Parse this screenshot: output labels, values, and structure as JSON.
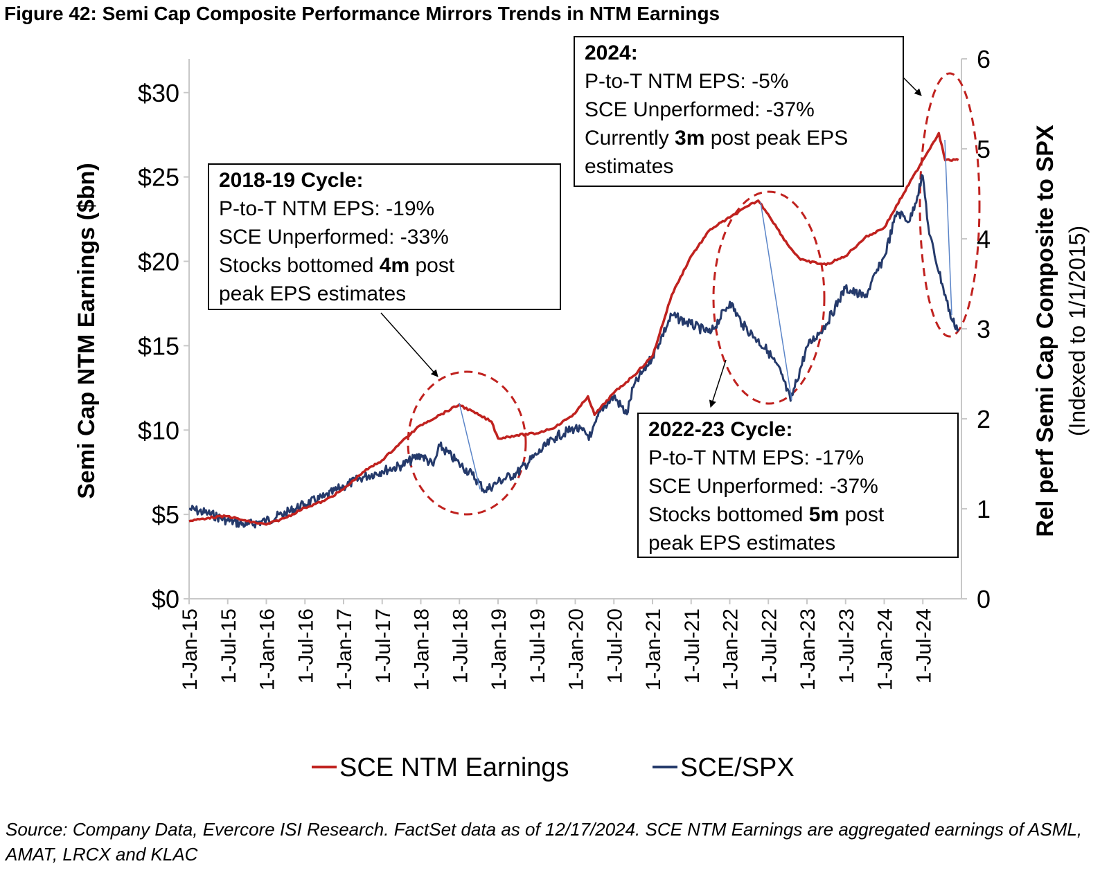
{
  "figure_title": "Figure 42: Semi Cap Composite Performance Mirrors Trends in NTM Earnings",
  "source_note": "Source: Company Data, Evercore ISI Research. FactSet data as of 12/17/2024. SCE NTM Earnings are aggregated earnings of ASML, AMAT, LRCX and KLAC",
  "colors": {
    "earnings": "#c0221f",
    "relperf": "#253a6b",
    "ellipse": "#c0221f",
    "connector": "#5b85c8"
  },
  "callouts": {
    "c2018": {
      "title": "2018-19 Cycle:",
      "line1": "P-to-T NTM EPS: -19%",
      "line2": "SCE Unperformed: -33%",
      "line3_pre": "Stocks bottomed ",
      "line3_bold": "4m",
      "line3_post": " post",
      "line4": "peak EPS estimates"
    },
    "c2022": {
      "title": "2022-23 Cycle:",
      "line1": "P-to-T NTM EPS: -17%",
      "line2": "SCE Unperformed: -37%",
      "line3_pre": "Stocks bottomed ",
      "line3_bold": "5m",
      "line3_post": " post",
      "line4": "peak EPS estimates"
    },
    "c2024": {
      "title": "2024:",
      "line1": "P-to-T NTM EPS: -5%",
      "line2": "SCE Unperformed: -37%",
      "line3_pre": "Currently ",
      "line3_bold": "3m",
      "line3_post": " post peak EPS",
      "line4": "estimates"
    }
  },
  "chart_data": {
    "type": "line",
    "x_axis": {
      "tick_labels": [
        "1-Jan-15",
        "1-Jul-15",
        "1-Jan-16",
        "1-Jul-16",
        "1-Jan-17",
        "1-Jul-17",
        "1-Jan-18",
        "1-Jul-18",
        "1-Jan-19",
        "1-Jul-19",
        "1-Jan-20",
        "1-Jul-20",
        "1-Jan-21",
        "1-Jul-21",
        "1-Jan-22",
        "1-Jul-22",
        "1-Jan-23",
        "1-Jul-23",
        "1-Jan-24",
        "1-Jul-24"
      ],
      "range": [
        "2015-01-01",
        "2024-12-31"
      ]
    },
    "y_left": {
      "label": "Semi Cap NTM Earnings ($bn)",
      "range": [
        0,
        32
      ],
      "ticks": [
        0,
        5,
        10,
        15,
        20,
        25,
        30
      ],
      "tick_labels": [
        "$0",
        "$5",
        "$10",
        "$15",
        "$20",
        "$25",
        "$30"
      ]
    },
    "y_right": {
      "label": "Rel perf Semi Cap Composite to SPX",
      "sublabel": "(Indexed to 1/1/2015)",
      "range": [
        0,
        6
      ],
      "ticks": [
        0,
        1,
        2,
        3,
        4,
        5,
        6
      ],
      "tick_labels": [
        "0",
        "1",
        "2",
        "3",
        "4",
        "5",
        "6"
      ]
    },
    "legend_position": "bottom",
    "series": [
      {
        "name": "SCE NTM Earnings",
        "axis": "left",
        "points": [
          [
            "2015-01-01",
            4.6
          ],
          [
            "2015-04-01",
            4.8
          ],
          [
            "2015-07-01",
            4.9
          ],
          [
            "2015-10-01",
            4.6
          ],
          [
            "2016-01-01",
            4.4
          ],
          [
            "2016-04-01",
            4.8
          ],
          [
            "2016-07-01",
            5.4
          ],
          [
            "2016-10-01",
            5.8
          ],
          [
            "2017-01-01",
            6.5
          ],
          [
            "2017-04-01",
            7.5
          ],
          [
            "2017-07-01",
            8.2
          ],
          [
            "2017-10-01",
            9.3
          ],
          [
            "2018-01-01",
            10.3
          ],
          [
            "2018-04-01",
            10.9
          ],
          [
            "2018-07-01",
            11.5
          ],
          [
            "2018-10-01",
            10.9
          ],
          [
            "2018-12-01",
            10.5
          ],
          [
            "2019-01-01",
            9.5
          ],
          [
            "2019-04-01",
            9.7
          ],
          [
            "2019-07-01",
            9.8
          ],
          [
            "2019-10-01",
            10.2
          ],
          [
            "2020-01-01",
            11.0
          ],
          [
            "2020-03-01",
            12.0
          ],
          [
            "2020-04-01",
            10.9
          ],
          [
            "2020-07-01",
            12.2
          ],
          [
            "2020-10-01",
            13.2
          ],
          [
            "2021-01-01",
            14.4
          ],
          [
            "2021-04-01",
            18.0
          ],
          [
            "2021-07-01",
            20.3
          ],
          [
            "2021-10-01",
            21.9
          ],
          [
            "2022-01-01",
            22.6
          ],
          [
            "2022-04-01",
            23.3
          ],
          [
            "2022-05-15",
            23.6
          ],
          [
            "2022-07-01",
            22.8
          ],
          [
            "2022-10-01",
            21.0
          ],
          [
            "2022-12-01",
            20.1
          ],
          [
            "2023-01-01",
            20.0
          ],
          [
            "2023-04-01",
            19.8
          ],
          [
            "2023-07-01",
            20.3
          ],
          [
            "2023-10-01",
            21.4
          ],
          [
            "2024-01-01",
            22.0
          ],
          [
            "2024-04-01",
            24.0
          ],
          [
            "2024-07-01",
            26.0
          ],
          [
            "2024-09-15",
            27.6
          ],
          [
            "2024-10-15",
            26.0
          ],
          [
            "2024-12-17",
            26.0
          ]
        ]
      },
      {
        "name": "SCE/SPX",
        "axis": "right",
        "points": [
          [
            "2015-01-01",
            1.0
          ],
          [
            "2015-04-01",
            0.95
          ],
          [
            "2015-07-01",
            0.87
          ],
          [
            "2015-10-01",
            0.82
          ],
          [
            "2016-01-01",
            0.87
          ],
          [
            "2016-04-01",
            0.95
          ],
          [
            "2016-07-01",
            1.05
          ],
          [
            "2016-10-01",
            1.13
          ],
          [
            "2017-01-01",
            1.25
          ],
          [
            "2017-04-01",
            1.35
          ],
          [
            "2017-07-01",
            1.42
          ],
          [
            "2017-10-01",
            1.48
          ],
          [
            "2018-01-01",
            1.6
          ],
          [
            "2018-03-01",
            1.48
          ],
          [
            "2018-04-01",
            1.7
          ],
          [
            "2018-07-01",
            1.5
          ],
          [
            "2018-09-01",
            1.38
          ],
          [
            "2018-11-01",
            1.2
          ],
          [
            "2019-01-01",
            1.3
          ],
          [
            "2019-04-01",
            1.4
          ],
          [
            "2019-07-01",
            1.6
          ],
          [
            "2019-10-01",
            1.8
          ],
          [
            "2020-01-01",
            1.9
          ],
          [
            "2020-03-15",
            1.8
          ],
          [
            "2020-05-01",
            2.1
          ],
          [
            "2020-07-01",
            2.25
          ],
          [
            "2020-09-01",
            2.05
          ],
          [
            "2020-10-01",
            2.35
          ],
          [
            "2021-01-01",
            2.7
          ],
          [
            "2021-04-01",
            3.15
          ],
          [
            "2021-07-01",
            3.05
          ],
          [
            "2021-10-01",
            2.95
          ],
          [
            "2022-01-01",
            3.3
          ],
          [
            "2022-03-01",
            3.05
          ],
          [
            "2022-05-01",
            2.9
          ],
          [
            "2022-07-01",
            2.75
          ],
          [
            "2022-09-01",
            2.5
          ],
          [
            "2022-10-15",
            2.2
          ],
          [
            "2023-01-01",
            2.8
          ],
          [
            "2023-04-01",
            3.05
          ],
          [
            "2023-07-01",
            3.45
          ],
          [
            "2023-10-01",
            3.35
          ],
          [
            "2024-01-01",
            3.8
          ],
          [
            "2024-03-01",
            4.3
          ],
          [
            "2024-05-01",
            4.2
          ],
          [
            "2024-07-01",
            4.7
          ],
          [
            "2024-08-01",
            4.05
          ],
          [
            "2024-10-01",
            3.5
          ],
          [
            "2024-11-15",
            3.1
          ],
          [
            "2024-12-17",
            3.0
          ]
        ]
      }
    ],
    "annotations": [
      "2018-19 Cycle: P-to-T NTM EPS: -19%, SCE Unperformed: -33%, Stocks bottomed 4m post peak EPS estimates",
      "2022-23 Cycle: P-to-T NTM EPS: -17%, SCE Unperformed: -37%, Stocks bottomed 5m post peak EPS estimates",
      "2024: P-to-T NTM EPS: -5%, SCE Unperformed: -37%, Currently 3m post peak EPS estimates"
    ]
  }
}
